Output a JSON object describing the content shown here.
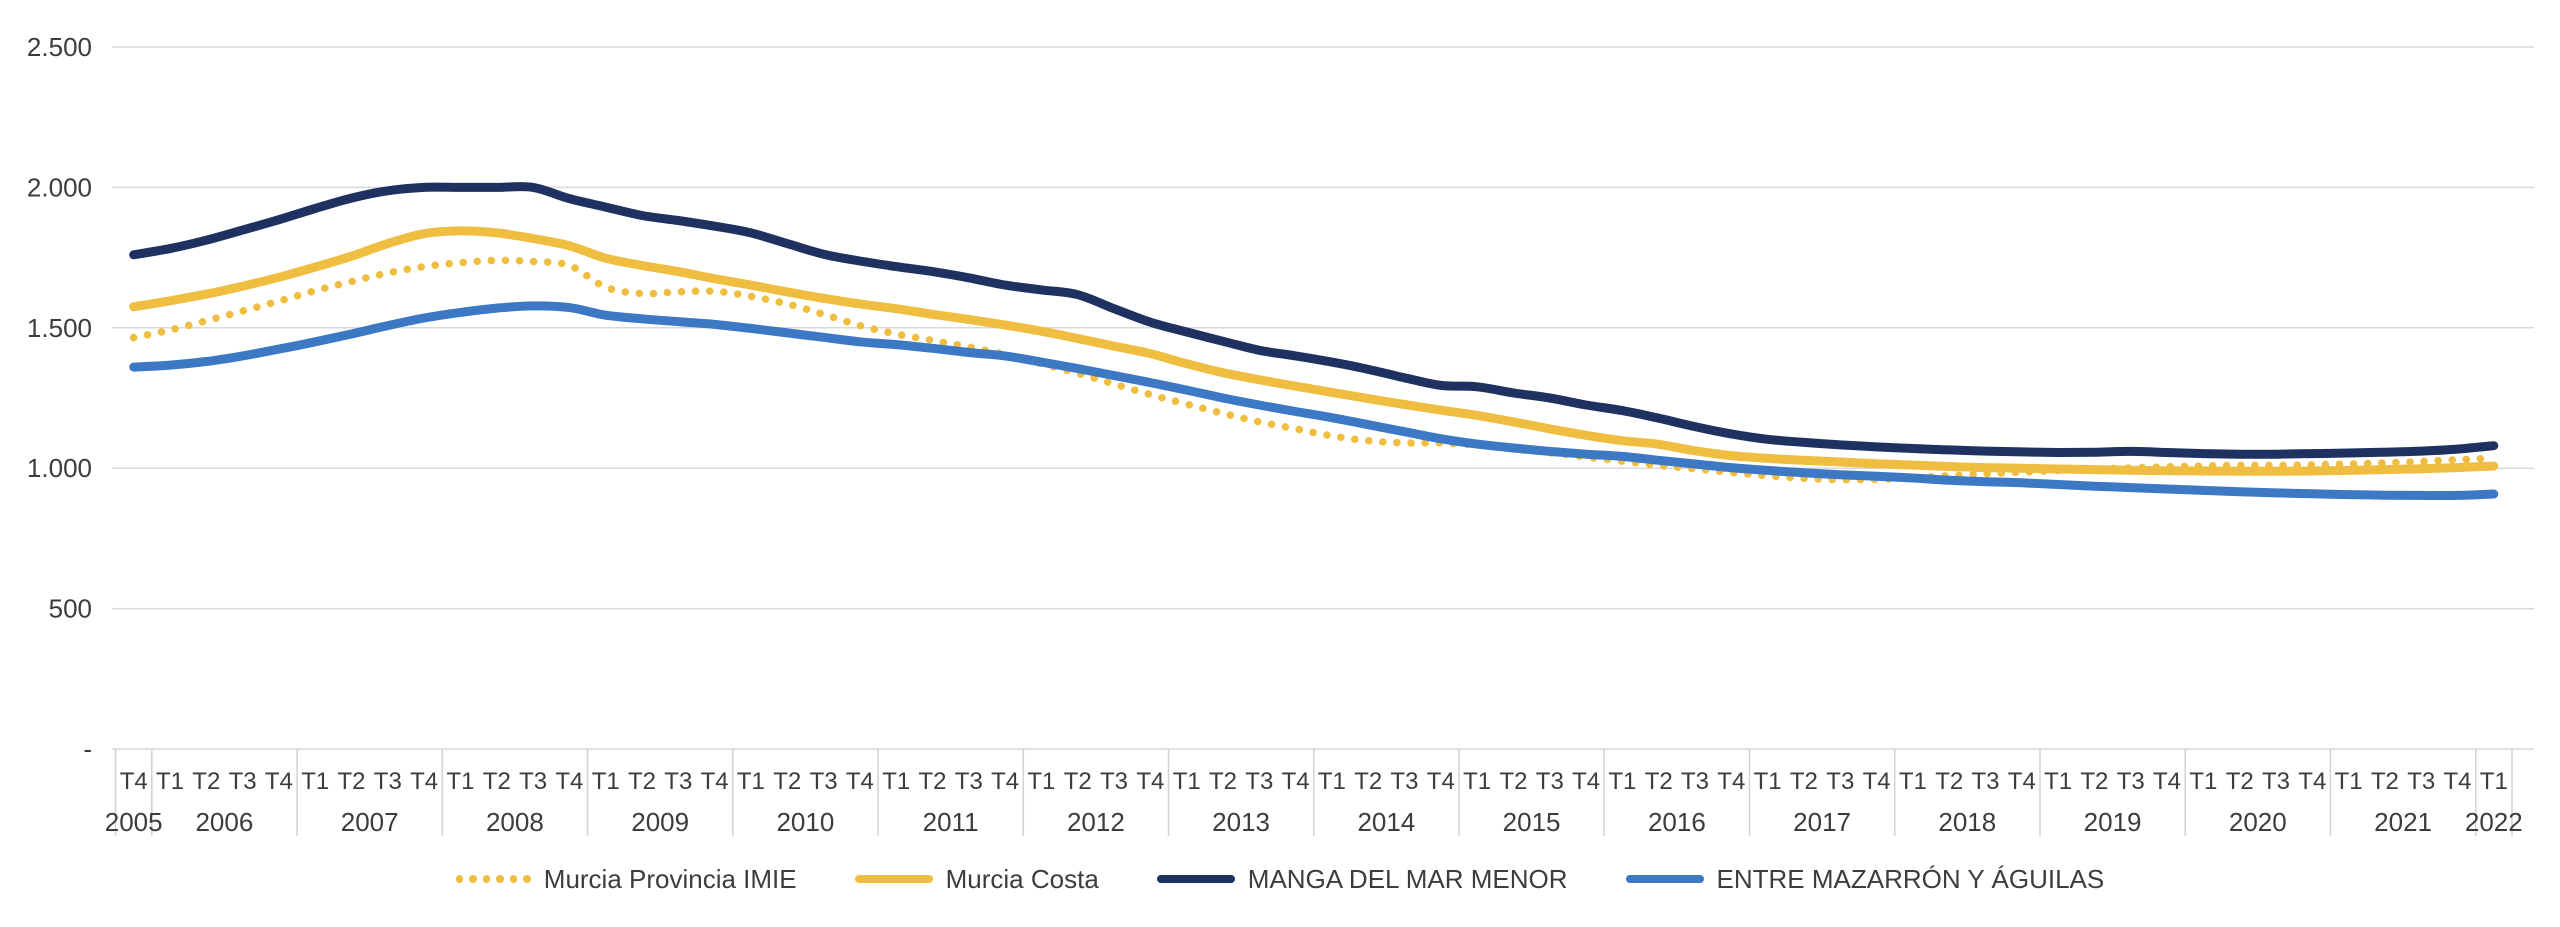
{
  "chart_data": {
    "type": "line",
    "title": "",
    "grid": "horizontal",
    "legend_position": "bottom",
    "grid_color": "#D9D9D9",
    "table_border_color": "#D2D2D2",
    "axis_text_color": "#3C3C3C",
    "legend_text_color": "#3D3D3D",
    "y_axis": {
      "min": 0,
      "max": 2500,
      "ticks": [
        {
          "label": "-",
          "value": 0
        },
        {
          "label": "500",
          "value": 500
        },
        {
          "label": "1.000",
          "value": 1000
        },
        {
          "label": "1.500",
          "value": 1500
        },
        {
          "label": "2.000",
          "value": 2000
        },
        {
          "label": "2.500",
          "value": 2500
        }
      ]
    },
    "x_axis": {
      "groups": [
        {
          "year": "2005",
          "quarters": [
            "T4"
          ]
        },
        {
          "year": "2006",
          "quarters": [
            "T1",
            "T2",
            "T3",
            "T4"
          ]
        },
        {
          "year": "2007",
          "quarters": [
            "T1",
            "T2",
            "T3",
            "T4"
          ]
        },
        {
          "year": "2008",
          "quarters": [
            "T1",
            "T2",
            "T3",
            "T4"
          ]
        },
        {
          "year": "2009",
          "quarters": [
            "T1",
            "T2",
            "T3",
            "T4"
          ]
        },
        {
          "year": "2010",
          "quarters": [
            "T1",
            "T2",
            "T3",
            "T4"
          ]
        },
        {
          "year": "2011",
          "quarters": [
            "T1",
            "T2",
            "T3",
            "T4"
          ]
        },
        {
          "year": "2012",
          "quarters": [
            "T1",
            "T2",
            "T3",
            "T4"
          ]
        },
        {
          "year": "2013",
          "quarters": [
            "T1",
            "T2",
            "T3",
            "T4"
          ]
        },
        {
          "year": "2014",
          "quarters": [
            "T1",
            "T2",
            "T3",
            "T4"
          ]
        },
        {
          "year": "2015",
          "quarters": [
            "T1",
            "T2",
            "T3",
            "T4"
          ]
        },
        {
          "year": "2016",
          "quarters": [
            "T1",
            "T2",
            "T3",
            "T4"
          ]
        },
        {
          "year": "2017",
          "quarters": [
            "T1",
            "T2",
            "T3",
            "T4"
          ]
        },
        {
          "year": "2018",
          "quarters": [
            "T1",
            "T2",
            "T3",
            "T4"
          ]
        },
        {
          "year": "2019",
          "quarters": [
            "T1",
            "T2",
            "T3",
            "T4"
          ]
        },
        {
          "year": "2020",
          "quarters": [
            "T1",
            "T2",
            "T3",
            "T4"
          ]
        },
        {
          "year": "2021",
          "quarters": [
            "T1",
            "T2",
            "T3",
            "T4"
          ]
        },
        {
          "year": "2022",
          "quarters": [
            "T1"
          ]
        }
      ]
    },
    "series": [
      {
        "name": "Murcia Provincia IMIE",
        "color": "#EFBE41",
        "style": "dotted",
        "line_width": 7.5,
        "values": [
          1465,
          1492,
          1525,
          1560,
          1595,
          1632,
          1665,
          1695,
          1718,
          1732,
          1740,
          1736,
          1722,
          1645,
          1622,
          1628,
          1630,
          1612,
          1585,
          1548,
          1508,
          1478,
          1455,
          1432,
          1405,
          1372,
          1338,
          1300,
          1262,
          1228,
          1195,
          1165,
          1140,
          1115,
          1098,
          1090,
          1090,
          1082,
          1068,
          1055,
          1040,
          1025,
          1010,
          998,
          985,
          973,
          964,
          959,
          960,
          966,
          973,
          980,
          986,
          992,
          997,
          1001,
          1005,
          1008,
          1010,
          1010,
          1012,
          1015,
          1019,
          1024,
          1030,
          1036
        ]
      },
      {
        "name": "Murcia Costa",
        "color": "#EFBE41",
        "style": "solid",
        "line_width": 9,
        "values": [
          1575,
          1596,
          1620,
          1648,
          1680,
          1716,
          1755,
          1800,
          1835,
          1845,
          1838,
          1818,
          1792,
          1748,
          1722,
          1700,
          1675,
          1652,
          1628,
          1605,
          1585,
          1568,
          1548,
          1530,
          1510,
          1488,
          1462,
          1435,
          1408,
          1372,
          1340,
          1315,
          1292,
          1270,
          1248,
          1227,
          1207,
          1188,
          1165,
          1140,
          1117,
          1098,
          1085,
          1062,
          1045,
          1035,
          1028,
          1022,
          1016,
          1011,
          1006,
          1002,
          1000,
          997,
          995,
          993,
          991,
          990,
          989,
          989,
          990,
          992,
          995,
          998,
          1002,
          1008
        ]
      },
      {
        "name": "MANGA DEL MAR MENOR",
        "color": "#1E3160",
        "style": "solid",
        "line_width": 9,
        "values": [
          1760,
          1782,
          1812,
          1848,
          1885,
          1925,
          1962,
          1988,
          2000,
          2000,
          2000,
          2000,
          1960,
          1930,
          1900,
          1882,
          1862,
          1838,
          1800,
          1762,
          1738,
          1718,
          1700,
          1678,
          1652,
          1635,
          1618,
          1568,
          1520,
          1485,
          1452,
          1420,
          1400,
          1378,
          1352,
          1322,
          1295,
          1290,
          1268,
          1250,
          1225,
          1205,
          1178,
          1148,
          1122,
          1103,
          1092,
          1083,
          1076,
          1070,
          1065,
          1061,
          1058,
          1056,
          1057,
          1060,
          1056,
          1052,
          1050,
          1050,
          1052,
          1054,
          1057,
          1061,
          1068,
          1080
        ]
      },
      {
        "name": "ENTRE MAZARRÓN Y ÁGUILAS",
        "color": "#3D78C5",
        "style": "solid",
        "line_width": 9,
        "values": [
          1360,
          1367,
          1380,
          1400,
          1424,
          1450,
          1478,
          1508,
          1535,
          1555,
          1570,
          1578,
          1572,
          1545,
          1532,
          1522,
          1512,
          1498,
          1482,
          1466,
          1450,
          1440,
          1427,
          1412,
          1400,
          1378,
          1355,
          1330,
          1305,
          1278,
          1250,
          1225,
          1202,
          1180,
          1155,
          1130,
          1105,
          1086,
          1072,
          1060,
          1050,
          1042,
          1028,
          1015,
          1002,
          992,
          984,
          977,
          971,
          965,
          957,
          952,
          948,
          942,
          936,
          931,
          926,
          921,
          916,
          912,
          909,
          906,
          904,
          903,
          903,
          908
        ]
      }
    ]
  }
}
